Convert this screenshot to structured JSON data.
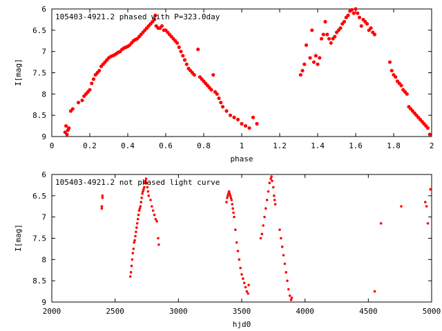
{
  "chart_data": [
    {
      "type": "scatter",
      "title": "105403-4921.2 phased with P=323.0day",
      "xlabel": "phase",
      "ylabel": "I[mag]",
      "xlim": [
        0,
        2
      ],
      "ylim": [
        9,
        6
      ],
      "y_inverted": true,
      "grid": false,
      "x_ticks": [
        0,
        0.2,
        0.4,
        0.6,
        0.8,
        1,
        1.2,
        1.4,
        1.6,
        1.8,
        2
      ],
      "x_tick_labels": [
        "0",
        "0.2",
        "0.4",
        "0.6",
        "0.8",
        "1",
        "1.2",
        "1.4",
        "1.6",
        "1.8",
        "2"
      ],
      "y_ticks": [
        6,
        6.5,
        7,
        7.5,
        8,
        8.5,
        9
      ],
      "y_tick_labels": [
        "6",
        "6.5",
        "7",
        "7.5",
        "8",
        "8.5",
        "9"
      ],
      "color": "#ff0000",
      "points": [
        [
          0.07,
          8.9
        ],
        [
          0.075,
          8.75
        ],
        [
          0.08,
          8.95
        ],
        [
          0.085,
          8.85
        ],
        [
          0.09,
          8.8
        ],
        [
          0.1,
          8.4
        ],
        [
          0.11,
          8.35
        ],
        [
          0.14,
          8.2
        ],
        [
          0.16,
          8.15
        ],
        [
          0.17,
          8.05
        ],
        [
          0.18,
          8.0
        ],
        [
          0.19,
          7.95
        ],
        [
          0.2,
          7.9
        ],
        [
          0.21,
          7.75
        ],
        [
          0.22,
          7.65
        ],
        [
          0.23,
          7.55
        ],
        [
          0.24,
          7.5
        ],
        [
          0.25,
          7.45
        ],
        [
          0.26,
          7.35
        ],
        [
          0.27,
          7.3
        ],
        [
          0.28,
          7.25
        ],
        [
          0.29,
          7.2
        ],
        [
          0.3,
          7.15
        ],
        [
          0.31,
          7.12
        ],
        [
          0.32,
          7.1
        ],
        [
          0.33,
          7.08
        ],
        [
          0.34,
          7.05
        ],
        [
          0.35,
          7.02
        ],
        [
          0.36,
          7.0
        ],
        [
          0.37,
          6.95
        ],
        [
          0.38,
          6.92
        ],
        [
          0.39,
          6.9
        ],
        [
          0.4,
          6.88
        ],
        [
          0.41,
          6.85
        ],
        [
          0.42,
          6.8
        ],
        [
          0.43,
          6.75
        ],
        [
          0.44,
          6.72
        ],
        [
          0.45,
          6.7
        ],
        [
          0.46,
          6.65
        ],
        [
          0.47,
          6.6
        ],
        [
          0.48,
          6.55
        ],
        [
          0.49,
          6.5
        ],
        [
          0.5,
          6.45
        ],
        [
          0.51,
          6.4
        ],
        [
          0.52,
          6.35
        ],
        [
          0.53,
          6.3
        ],
        [
          0.54,
          6.25
        ],
        [
          0.545,
          6.15
        ],
        [
          0.55,
          6.4
        ],
        [
          0.56,
          6.45
        ],
        [
          0.57,
          6.45
        ],
        [
          0.58,
          6.4
        ],
        [
          0.59,
          6.5
        ],
        [
          0.6,
          6.5
        ],
        [
          0.61,
          6.55
        ],
        [
          0.62,
          6.6
        ],
        [
          0.63,
          6.65
        ],
        [
          0.64,
          6.7
        ],
        [
          0.65,
          6.75
        ],
        [
          0.66,
          6.8
        ],
        [
          0.67,
          6.9
        ],
        [
          0.68,
          7.0
        ],
        [
          0.69,
          7.1
        ],
        [
          0.7,
          7.2
        ],
        [
          0.71,
          7.3
        ],
        [
          0.72,
          7.4
        ],
        [
          0.73,
          7.45
        ],
        [
          0.74,
          7.5
        ],
        [
          0.75,
          7.55
        ],
        [
          0.77,
          6.95
        ],
        [
          0.78,
          7.6
        ],
        [
          0.79,
          7.65
        ],
        [
          0.8,
          7.7
        ],
        [
          0.81,
          7.75
        ],
        [
          0.82,
          7.8
        ],
        [
          0.83,
          7.85
        ],
        [
          0.84,
          7.9
        ],
        [
          0.85,
          7.55
        ],
        [
          0.86,
          7.95
        ],
        [
          0.87,
          8.0
        ],
        [
          0.88,
          8.1
        ],
        [
          0.89,
          8.2
        ],
        [
          0.9,
          8.3
        ],
        [
          0.92,
          8.4
        ],
        [
          0.94,
          8.5
        ],
        [
          0.96,
          8.55
        ],
        [
          0.98,
          8.6
        ],
        [
          1.0,
          8.7
        ],
        [
          1.02,
          8.75
        ],
        [
          1.04,
          8.8
        ],
        [
          1.06,
          8.55
        ],
        [
          1.08,
          8.7
        ],
        [
          1.31,
          7.55
        ],
        [
          1.32,
          7.45
        ],
        [
          1.33,
          7.3
        ],
        [
          1.34,
          6.85
        ],
        [
          1.36,
          7.15
        ],
        [
          1.37,
          6.5
        ],
        [
          1.38,
          7.25
        ],
        [
          1.39,
          7.1
        ],
        [
          1.4,
          7.3
        ],
        [
          1.41,
          7.15
        ],
        [
          1.42,
          6.7
        ],
        [
          1.43,
          6.6
        ],
        [
          1.44,
          6.3
        ],
        [
          1.45,
          6.6
        ],
        [
          1.46,
          6.7
        ],
        [
          1.47,
          6.8
        ],
        [
          1.48,
          6.7
        ],
        [
          1.49,
          6.65
        ],
        [
          1.5,
          6.55
        ],
        [
          1.51,
          6.5
        ],
        [
          1.52,
          6.45
        ],
        [
          1.53,
          6.35
        ],
        [
          1.54,
          6.3
        ],
        [
          1.55,
          6.2
        ],
        [
          1.56,
          6.15
        ],
        [
          1.57,
          6.05
        ],
        [
          1.58,
          6.02
        ],
        [
          1.59,
          6.1
        ],
        [
          1.6,
          6.0
        ],
        [
          1.61,
          6.1
        ],
        [
          1.62,
          6.2
        ],
        [
          1.63,
          6.4
        ],
        [
          1.64,
          6.25
        ],
        [
          1.65,
          6.3
        ],
        [
          1.66,
          6.35
        ],
        [
          1.67,
          6.5
        ],
        [
          1.68,
          6.45
        ],
        [
          1.69,
          6.55
        ],
        [
          1.7,
          6.6
        ],
        [
          1.78,
          7.25
        ],
        [
          1.79,
          7.45
        ],
        [
          1.8,
          7.55
        ],
        [
          1.81,
          7.6
        ],
        [
          1.82,
          7.7
        ],
        [
          1.83,
          7.75
        ],
        [
          1.84,
          7.8
        ],
        [
          1.85,
          7.9
        ],
        [
          1.86,
          7.95
        ],
        [
          1.87,
          8.0
        ],
        [
          1.88,
          8.3
        ],
        [
          1.89,
          8.35
        ],
        [
          1.9,
          8.4
        ],
        [
          1.91,
          8.45
        ],
        [
          1.92,
          8.5
        ],
        [
          1.93,
          8.55
        ],
        [
          1.94,
          8.6
        ],
        [
          1.95,
          8.65
        ],
        [
          1.96,
          8.7
        ],
        [
          1.97,
          8.75
        ],
        [
          1.98,
          8.8
        ],
        [
          1.99,
          8.95
        ]
      ]
    },
    {
      "type": "scatter",
      "title": "105403-4921.2 not phased light curve",
      "xlabel": "hjd0",
      "ylabel": "I[mag]",
      "xlim": [
        2000,
        5000
      ],
      "ylim": [
        9,
        6
      ],
      "y_inverted": true,
      "grid": false,
      "x_ticks": [
        2000,
        2500,
        3000,
        3500,
        4000,
        4500,
        5000
      ],
      "x_tick_labels": [
        "2000",
        "2500",
        "3000",
        "3500",
        "4000",
        "4500",
        "5000"
      ],
      "y_ticks": [
        6,
        6.5,
        7,
        7.5,
        8,
        8.5,
        9
      ],
      "y_tick_labels": [
        "6",
        "6.5",
        "7",
        "7.5",
        "8",
        "8.5",
        "9"
      ],
      "color": "#ff0000",
      "points": [
        [
          2400,
          6.5
        ],
        [
          2400,
          6.55
        ],
        [
          2395,
          6.75
        ],
        [
          2395,
          6.8
        ],
        [
          2620,
          8.4
        ],
        [
          2625,
          8.3
        ],
        [
          2630,
          8.15
        ],
        [
          2635,
          8.0
        ],
        [
          2640,
          7.85
        ],
        [
          2645,
          7.75
        ],
        [
          2650,
          7.6
        ],
        [
          2655,
          7.55
        ],
        [
          2660,
          7.45
        ],
        [
          2665,
          7.35
        ],
        [
          2670,
          7.25
        ],
        [
          2675,
          7.15
        ],
        [
          2680,
          7.05
        ],
        [
          2685,
          6.95
        ],
        [
          2690,
          6.85
        ],
        [
          2695,
          6.8
        ],
        [
          2700,
          6.75
        ],
        [
          2705,
          6.65
        ],
        [
          2710,
          6.55
        ],
        [
          2715,
          6.45
        ],
        [
          2720,
          6.4
        ],
        [
          2725,
          6.35
        ],
        [
          2730,
          6.3
        ],
        [
          2735,
          6.2
        ],
        [
          2740,
          6.15
        ],
        [
          2745,
          6.1
        ],
        [
          2750,
          6.2
        ],
        [
          2755,
          6.3
        ],
        [
          2760,
          6.4
        ],
        [
          2765,
          6.5
        ],
        [
          2780,
          6.6
        ],
        [
          2790,
          6.75
        ],
        [
          2800,
          6.85
        ],
        [
          2810,
          6.95
        ],
        [
          2820,
          7.05
        ],
        [
          2830,
          7.1
        ],
        [
          2840,
          7.5
        ],
        [
          2845,
          7.65
        ],
        [
          3380,
          6.65
        ],
        [
          3385,
          6.55
        ],
        [
          3390,
          6.5
        ],
        [
          3395,
          6.45
        ],
        [
          3400,
          6.4
        ],
        [
          3405,
          6.45
        ],
        [
          3410,
          6.5
        ],
        [
          3415,
          6.55
        ],
        [
          3420,
          6.6
        ],
        [
          3425,
          6.7
        ],
        [
          3430,
          6.8
        ],
        [
          3435,
          6.9
        ],
        [
          3440,
          7.0
        ],
        [
          3450,
          7.3
        ],
        [
          3460,
          7.6
        ],
        [
          3470,
          7.8
        ],
        [
          3480,
          8.0
        ],
        [
          3490,
          8.2
        ],
        [
          3500,
          8.35
        ],
        [
          3510,
          8.45
        ],
        [
          3520,
          8.55
        ],
        [
          3530,
          8.65
        ],
        [
          3540,
          8.75
        ],
        [
          3550,
          8.8
        ],
        [
          3555,
          8.6
        ],
        [
          3650,
          7.5
        ],
        [
          3660,
          7.4
        ],
        [
          3670,
          7.2
        ],
        [
          3680,
          7.0
        ],
        [
          3690,
          6.8
        ],
        [
          3700,
          6.6
        ],
        [
          3710,
          6.4
        ],
        [
          3720,
          6.2
        ],
        [
          3730,
          6.1
        ],
        [
          3735,
          6.05
        ],
        [
          3740,
          6.15
        ],
        [
          3750,
          6.3
        ],
        [
          3755,
          6.5
        ],
        [
          3760,
          6.6
        ],
        [
          3765,
          6.7
        ],
        [
          3800,
          7.3
        ],
        [
          3810,
          7.5
        ],
        [
          3820,
          7.7
        ],
        [
          3830,
          7.9
        ],
        [
          3840,
          8.1
        ],
        [
          3850,
          8.3
        ],
        [
          3860,
          8.5
        ],
        [
          3870,
          8.7
        ],
        [
          3880,
          8.85
        ],
        [
          3890,
          8.95
        ],
        [
          3895,
          8.9
        ],
        [
          4550,
          8.75
        ],
        [
          4600,
          7.15
        ],
        [
          4760,
          6.75
        ],
        [
          4950,
          6.65
        ],
        [
          4960,
          6.75
        ],
        [
          4970,
          7.15
        ],
        [
          4990,
          6.35
        ]
      ]
    }
  ]
}
